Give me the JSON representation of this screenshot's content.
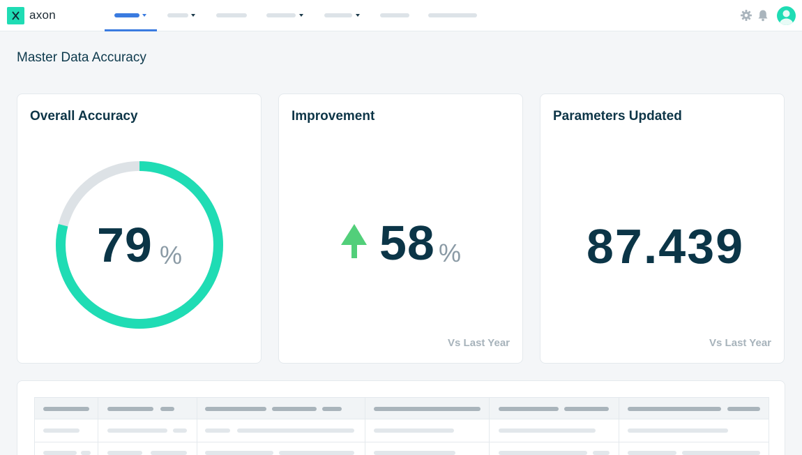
{
  "app": {
    "brand": "axon",
    "accent": "#1fdcb4",
    "nav_accent": "#3a7be0"
  },
  "nav": {
    "items": [
      {
        "active": true,
        "has_caret": true
      },
      {
        "active": false,
        "has_caret": true
      },
      {
        "active": false,
        "has_caret": false
      },
      {
        "active": false,
        "has_caret": true
      },
      {
        "active": false,
        "has_caret": true
      },
      {
        "active": false,
        "has_caret": false
      },
      {
        "active": false,
        "has_caret": false
      }
    ],
    "icons": [
      "gear-icon",
      "bell-icon",
      "user-avatar-icon"
    ]
  },
  "page": {
    "title": "Master Data Accuracy"
  },
  "cards": {
    "accuracy": {
      "title": "Overall Accuracy",
      "value": "79",
      "unit": "%",
      "fraction": 0.79
    },
    "improvement": {
      "title": "Improvement",
      "value": "58",
      "unit": "%",
      "trend_icon": "arrow-up-icon",
      "footnote": "Vs Last Year"
    },
    "parameters": {
      "title": "Parameters Updated",
      "value": "87.439",
      "footnote": "Vs Last Year"
    }
  },
  "table": {
    "columns": 6,
    "rows": 2
  }
}
